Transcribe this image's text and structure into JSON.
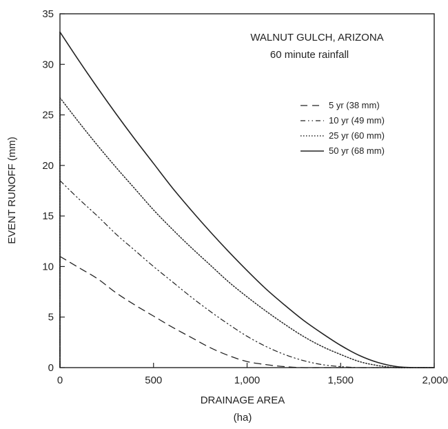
{
  "chart_data": {
    "type": "line",
    "title": "",
    "annotation_lines": [
      "WALNUT GULCH, ARIZONA",
      "60 minute rainfall"
    ],
    "xlabel": "DRAINAGE AREA",
    "xlabel_unit": "(ha)",
    "ylabel": "EVENT RUNOFF (mm)",
    "xlim": [
      0,
      2000
    ],
    "ylim": [
      0,
      35
    ],
    "x_ticks": [
      0,
      500,
      1000,
      1500,
      2000
    ],
    "x_tick_labels": [
      "0",
      "500",
      "1,000",
      "1,500",
      "2,000"
    ],
    "y_ticks": [
      0,
      5,
      10,
      15,
      20,
      25,
      30,
      35
    ],
    "y_tick_labels": [
      "0",
      "5",
      "10",
      "15",
      "20",
      "25",
      "30",
      "35"
    ],
    "grid": false,
    "legend_position": "top-right",
    "series": [
      {
        "name": "5 yr (38 mm)",
        "style": "dashed",
        "x": [
          0,
          100,
          200,
          300,
          400,
          500,
          600,
          700,
          800,
          900,
          1000,
          1100,
          1200,
          1300,
          1400,
          1500,
          1600,
          1700,
          1800,
          1900,
          2000
        ],
        "values": [
          11.0,
          9.9,
          8.8,
          7.4,
          6.2,
          5.1,
          4.0,
          3.0,
          2.0,
          1.2,
          0.6,
          0.3,
          0.1,
          0.0,
          0.0,
          0.0,
          0.0,
          0.0,
          0.0,
          0.0,
          0.0
        ]
      },
      {
        "name": "10 yr (49 mm)",
        "style": "dashdot",
        "x": [
          0,
          100,
          200,
          300,
          400,
          500,
          600,
          700,
          800,
          900,
          1000,
          1100,
          1200,
          1300,
          1400,
          1500,
          1600,
          1700,
          1800,
          1900,
          2000
        ],
        "values": [
          18.5,
          16.7,
          15.0,
          13.2,
          11.6,
          10.0,
          8.5,
          7.0,
          5.6,
          4.3,
          3.1,
          2.1,
          1.3,
          0.7,
          0.3,
          0.1,
          0.0,
          0.0,
          0.0,
          0.0,
          0.0
        ]
      },
      {
        "name": "25 yr (60 mm)",
        "style": "dotted",
        "x": [
          0,
          100,
          200,
          300,
          400,
          500,
          600,
          700,
          800,
          900,
          1000,
          1100,
          1200,
          1300,
          1400,
          1500,
          1600,
          1700,
          1800,
          1900,
          2000
        ],
        "values": [
          26.7,
          24.3,
          22.0,
          19.8,
          17.7,
          15.6,
          13.7,
          11.9,
          10.2,
          8.5,
          7.0,
          5.6,
          4.3,
          3.1,
          2.1,
          1.3,
          0.6,
          0.2,
          0.0,
          0.0,
          0.0
        ]
      },
      {
        "name": "50 yr (68 mm)",
        "style": "solid",
        "x": [
          0,
          100,
          200,
          300,
          400,
          500,
          600,
          700,
          800,
          900,
          1000,
          1100,
          1200,
          1300,
          1400,
          1500,
          1600,
          1700,
          1800,
          1900,
          2000
        ],
        "values": [
          33.2,
          30.4,
          27.7,
          25.1,
          22.6,
          20.2,
          17.8,
          15.6,
          13.5,
          11.5,
          9.6,
          7.8,
          6.2,
          4.7,
          3.4,
          2.2,
          1.2,
          0.5,
          0.1,
          0.0,
          0.0
        ]
      }
    ]
  }
}
